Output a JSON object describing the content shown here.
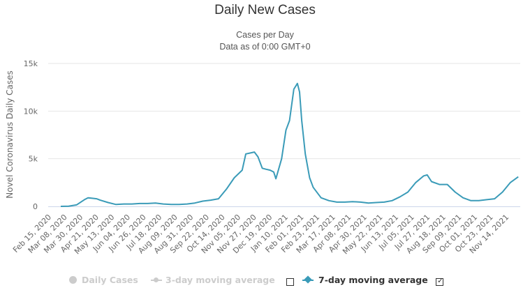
{
  "title": "Daily New Cases",
  "subtitle_line1": "Cases per Day",
  "subtitle_line2": "Data as of 0:00 GMT+0",
  "colors": {
    "series": "#3a9bb8",
    "grid": "#e6e6e6",
    "axis": "#ccd6eb",
    "legend_dim": "#cccccc",
    "legend_active": "#333333"
  },
  "legend": {
    "items": [
      {
        "label": "Daily Cases",
        "icon": "circle-marker-icon",
        "active": false
      },
      {
        "label": "3-day moving average",
        "icon": "line-marker-icon",
        "active": false,
        "checkbox_checked": false
      },
      {
        "label": "7-day moving average",
        "icon": "line-marker-icon",
        "active": true,
        "checkbox_checked": true
      }
    ],
    "check_glyph": "✓"
  },
  "chart_data": {
    "type": "line",
    "title": "Daily New Cases",
    "subtitle": "Cases per Day / Data as of 0:00 GMT+0",
    "xlabel": "",
    "ylabel": "Novel Coronavirus Daily Cases",
    "ylim": [
      0,
      15000
    ],
    "y_ticks": [
      0,
      5000,
      10000,
      15000
    ],
    "y_tick_labels": [
      "0",
      "5k",
      "10k",
      "15k"
    ],
    "grid": true,
    "x_start_date": "Feb 15, 2020",
    "x_ticks_day_index": [
      0,
      22,
      44,
      66,
      88,
      110,
      132,
      154,
      176,
      198,
      220,
      242,
      264,
      286,
      308,
      330,
      352,
      374,
      396,
      418,
      440,
      462,
      484,
      506,
      528,
      550,
      572,
      594,
      616,
      638
    ],
    "x_tick_labels": [
      "Feb 15, 2020",
      "Mar 08, 2020",
      "Mar 30, 2020",
      "Apr 21, 2020",
      "May 13, 2020",
      "Jun 04, 2020",
      "Jun 26, 2020",
      "Jul 18, 2020",
      "Aug 09, 2020",
      "Aug 31, 2020",
      "Sep 22, 2020",
      "Oct 14, 2020",
      "Nov 05, 2020",
      "Nov 27, 2020",
      "Dec 19, 2020",
      "Jan 10, 2021",
      "Feb 01, 2021",
      "Feb 23, 2021",
      "Mar 17, 2021",
      "Apr 08, 2021",
      "Apr 30, 2021",
      "May 22, 2021",
      "Jun 13, 2021",
      "Jul 05, 2021",
      "Jul 27, 2021",
      "Aug 18, 2021",
      "Sep 09, 2021",
      "Oct 01, 2021",
      "Oct 23, 2021",
      "Nov 14, 2021"
    ],
    "x_max_day_index": 642,
    "legend_position": "bottom",
    "series": [
      {
        "name": "7-day moving average",
        "day_index": [
          0,
          11,
          22,
          33,
          38,
          44,
          50,
          55,
          66,
          77,
          88,
          99,
          110,
          121,
          132,
          143,
          154,
          165,
          176,
          187,
          198,
          209,
          220,
          231,
          242,
          253,
          258,
          264,
          270,
          275,
          281,
          286,
          292,
          297,
          300,
          308,
          314,
          319,
          325,
          330,
          333,
          336,
          341,
          347,
          352,
          363,
          374,
          385,
          396,
          407,
          418,
          429,
          440,
          451,
          462,
          473,
          484,
          495,
          506,
          511,
          517,
          528,
          539,
          550,
          561,
          572,
          583,
          594,
          605,
          616,
          627,
          638
        ],
        "values": [
          0,
          20,
          150,
          700,
          900,
          850,
          800,
          650,
          400,
          200,
          250,
          250,
          300,
          300,
          350,
          250,
          200,
          200,
          250,
          350,
          550,
          650,
          800,
          1800,
          3000,
          3800,
          5500,
          5600,
          5700,
          5200,
          4000,
          3900,
          3800,
          3600,
          2900,
          5000,
          8000,
          9000,
          12300,
          12900,
          12000,
          9000,
          5500,
          3000,
          2000,
          900,
          600,
          450,
          450,
          500,
          450,
          350,
          400,
          450,
          600,
          1000,
          1500,
          2500,
          3200,
          3300,
          2600,
          2300,
          2300,
          1500,
          900,
          600,
          600,
          700,
          800,
          1500,
          2500,
          3100
        ]
      }
    ]
  }
}
